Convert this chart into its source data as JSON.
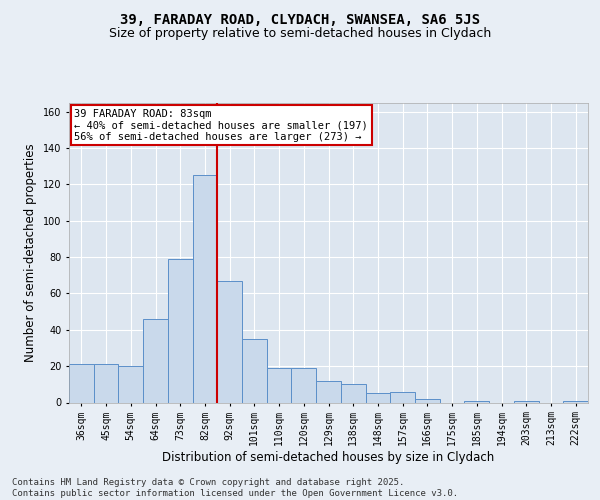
{
  "title_line1": "39, FARADAY ROAD, CLYDACH, SWANSEA, SA6 5JS",
  "title_line2": "Size of property relative to semi-detached houses in Clydach",
  "xlabel": "Distribution of semi-detached houses by size in Clydach",
  "ylabel": "Number of semi-detached properties",
  "categories": [
    "36sqm",
    "45sqm",
    "54sqm",
    "64sqm",
    "73sqm",
    "82sqm",
    "92sqm",
    "101sqm",
    "110sqm",
    "120sqm",
    "129sqm",
    "138sqm",
    "148sqm",
    "157sqm",
    "166sqm",
    "175sqm",
    "185sqm",
    "194sqm",
    "203sqm",
    "213sqm",
    "222sqm"
  ],
  "values": [
    21,
    21,
    20,
    46,
    79,
    125,
    67,
    35,
    19,
    19,
    12,
    10,
    5,
    6,
    2,
    0,
    1,
    0,
    1,
    0,
    1
  ],
  "bar_color": "#c9d9eb",
  "bar_edge_color": "#5b8fc9",
  "vline_x_index": 5,
  "vline_color": "#cc0000",
  "annotation_text": "39 FARADAY ROAD: 83sqm\n← 40% of semi-detached houses are smaller (197)\n56% of semi-detached houses are larger (273) →",
  "annotation_box_color": "#cc0000",
  "annotation_bg": "#ffffff",
  "footer_text": "Contains HM Land Registry data © Crown copyright and database right 2025.\nContains public sector information licensed under the Open Government Licence v3.0.",
  "ylim": [
    0,
    165
  ],
  "yticks": [
    0,
    20,
    40,
    60,
    80,
    100,
    120,
    140,
    160
  ],
  "bg_color": "#e8eef5",
  "plot_bg_color": "#dde6f0",
  "grid_color": "#ffffff",
  "title_fontsize": 10,
  "subtitle_fontsize": 9,
  "tick_fontsize": 7,
  "label_fontsize": 8.5,
  "footer_fontsize": 6.5,
  "annotation_fontsize": 7.5
}
